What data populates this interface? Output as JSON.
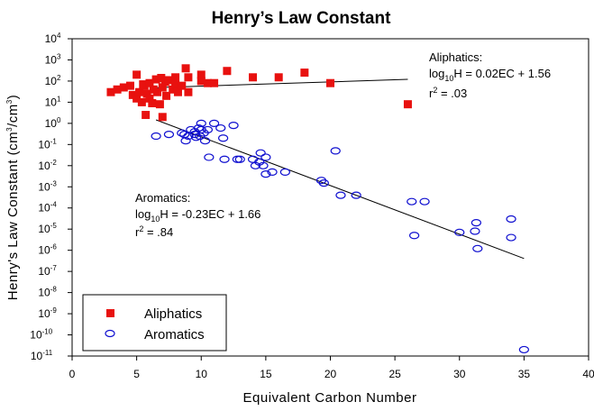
{
  "chart_data": {
    "type": "scatter",
    "title": "Henry’s Law Constant",
    "xlabel": "Equivalent Carbon Number",
    "ylabel_main": "Henry's Law Constant (cm",
    "ylabel_sup1": "3",
    "ylabel_mid": "/cm",
    "ylabel_sup2": "3",
    "ylabel_end": ")",
    "xlim": [
      0,
      40
    ],
    "x_ticks": [
      0,
      5,
      10,
      15,
      20,
      25,
      30,
      35,
      40
    ],
    "ylim_log10": [
      -11,
      4
    ],
    "y_tick_exponents": [
      4,
      3,
      2,
      1,
      0,
      -1,
      -2,
      -3,
      -4,
      -5,
      -6,
      -7,
      -8,
      -9,
      -10,
      -11
    ],
    "y_tick_base": "10",
    "y_scale": "log",
    "grid": false,
    "legend_placement": "bottom-left",
    "series": [
      {
        "name": "Aliphatics",
        "marker": "filled-square",
        "color": "#e8110f",
        "points": [
          [
            3,
            30
          ],
          [
            3.5,
            40
          ],
          [
            4,
            50
          ],
          [
            4.5,
            60
          ],
          [
            4.7,
            22
          ],
          [
            5,
            200
          ],
          [
            5,
            15
          ],
          [
            5.2,
            30
          ],
          [
            5.4,
            10
          ],
          [
            5.5,
            70
          ],
          [
            5.6,
            60
          ],
          [
            5.8,
            25
          ],
          [
            5.7,
            2.5
          ],
          [
            6,
            80
          ],
          [
            6,
            15
          ],
          [
            6.2,
            9
          ],
          [
            6.3,
            40
          ],
          [
            6.5,
            120
          ],
          [
            6.6,
            30
          ],
          [
            6.8,
            8
          ],
          [
            6.9,
            140
          ],
          [
            7,
            2
          ],
          [
            7,
            50
          ],
          [
            7.2,
            90
          ],
          [
            7.3,
            20
          ],
          [
            7.5,
            110
          ],
          [
            7.8,
            40
          ],
          [
            8,
            150
          ],
          [
            8,
            70
          ],
          [
            8.2,
            30
          ],
          [
            8.5,
            60
          ],
          [
            8.8,
            400
          ],
          [
            9,
            30
          ],
          [
            9,
            150
          ],
          [
            10,
            200
          ],
          [
            10,
            100
          ],
          [
            10.5,
            80
          ],
          [
            11,
            80
          ],
          [
            12,
            300
          ],
          [
            14,
            150
          ],
          [
            16,
            150
          ],
          [
            18,
            250
          ],
          [
            20,
            80
          ],
          [
            26,
            8
          ]
        ],
        "fit": {
          "equation_prefix": "log",
          "equation_sub": "10",
          "equation_rest": "H = 0.02EC + 1.56",
          "r2_prefix": "r",
          "r2_sup": "2",
          "r2_rest": " = .03",
          "slope": 0.02,
          "intercept": 1.56,
          "x_range": [
            6.5,
            26
          ]
        }
      },
      {
        "name": "Aromatics",
        "marker": "open-circle",
        "color": "#1010d0",
        "points": [
          [
            6.5,
            0.25
          ],
          [
            7.5,
            0.3
          ],
          [
            8.5,
            0.35
          ],
          [
            8.7,
            0.3
          ],
          [
            8.8,
            0.15
          ],
          [
            9,
            0.25
          ],
          [
            9.2,
            0.5
          ],
          [
            9.5,
            0.3
          ],
          [
            9.5,
            0.4
          ],
          [
            9.6,
            0.22
          ],
          [
            9.8,
            0.6
          ],
          [
            9.9,
            0.25
          ],
          [
            10,
            1.0
          ],
          [
            10,
            0.5
          ],
          [
            10.2,
            0.35
          ],
          [
            10.3,
            0.15
          ],
          [
            10.5,
            0.5
          ],
          [
            10.6,
            0.025
          ],
          [
            11,
            1.0
          ],
          [
            11.5,
            0.6
          ],
          [
            11.7,
            0.2
          ],
          [
            11.8,
            0.02
          ],
          [
            12.5,
            0.8
          ],
          [
            12.8,
            0.02
          ],
          [
            13,
            0.02
          ],
          [
            14,
            0.02
          ],
          [
            14.2,
            0.01
          ],
          [
            14.5,
            0.015
          ],
          [
            14.6,
            0.04
          ],
          [
            14.8,
            0.01
          ],
          [
            15,
            0.025
          ],
          [
            15,
            0.004
          ],
          [
            15.5,
            0.005
          ],
          [
            16.5,
            0.005
          ],
          [
            19.3,
            0.002
          ],
          [
            19.5,
            0.0015
          ],
          [
            20.4,
            0.05
          ],
          [
            20.8,
            0.0004
          ],
          [
            22,
            0.0004
          ],
          [
            26.3,
            0.0002
          ],
          [
            26.5,
            5e-06
          ],
          [
            27.3,
            0.0002
          ],
          [
            30,
            7e-06
          ],
          [
            31.2,
            8e-06
          ],
          [
            31.3,
            2e-05
          ],
          [
            31.4,
            1.2e-06
          ],
          [
            34,
            3e-05
          ],
          [
            34,
            4e-06
          ],
          [
            35,
            2e-11
          ]
        ],
        "fit": {
          "equation_prefix": "log",
          "equation_sub": "10",
          "equation_rest": "H = -0.23EC + 1.66",
          "r2_prefix": "r",
          "r2_sup": "2",
          "r2_rest": " = .84",
          "slope": -0.23,
          "intercept": 1.66,
          "x_range": [
            6.5,
            35
          ]
        }
      }
    ],
    "annotations": {
      "aliphatics_title": "Aliphatics:",
      "aromatics_title": "Aromatics:"
    },
    "legend": {
      "aliphatics": "Aliphatics",
      "aromatics": "Aromatics"
    }
  }
}
